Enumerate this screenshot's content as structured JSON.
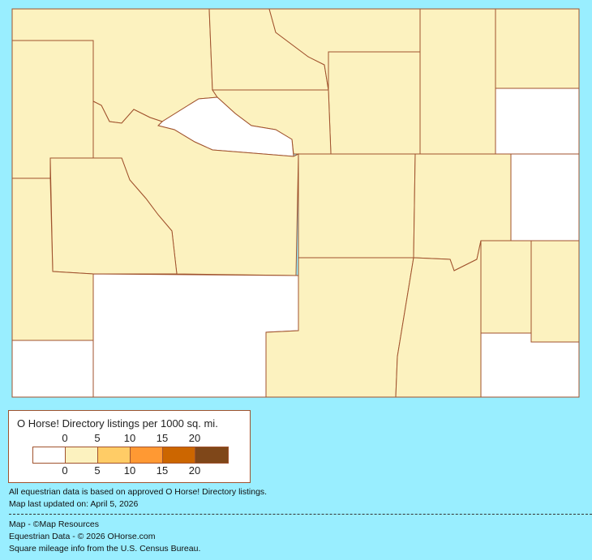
{
  "map": {
    "bin_colors": [
      "#FFFFFF",
      "#FCF2BF",
      "#FFCC66",
      "#FF9933",
      "#CC6600",
      "#7F4719"
    ],
    "border_color": "#A0522D",
    "county_bins": {
      "park": 1,
      "big-horn": 1,
      "sheridan": 1,
      "campbell": 1,
      "crook": 1,
      "weston": 0,
      "johnson": 1,
      "washakie": 1,
      "hot-springs": 0,
      "teton": 1,
      "fremont": 1,
      "natrona": 1,
      "converse": 1,
      "niobrara": 0,
      "lincoln": 1,
      "sublette": 1,
      "sweetwater": 0,
      "uinta": 0,
      "carbon": 1,
      "albany": 1,
      "platte": 1,
      "goshen": 1,
      "laramie": 0
    }
  },
  "legend": {
    "title": "O Horse! Directory listings per 1000 sq. mi.",
    "top_ticks": [
      "0",
      "5",
      "10",
      "15",
      "20"
    ],
    "bottom_ticks": [
      "0",
      "5",
      "10",
      "15",
      "20"
    ]
  },
  "notes": {
    "line1": "All equestrian data is based on approved O Horse! Directory listings.",
    "line2": "Map last updated on: April 5, 2026"
  },
  "credits": {
    "map": "Map - ©Map Resources",
    "data": "Equestrian Data - © 2026 OHorse.com",
    "census": "Square mileage info from the U.S. Census Bureau."
  }
}
